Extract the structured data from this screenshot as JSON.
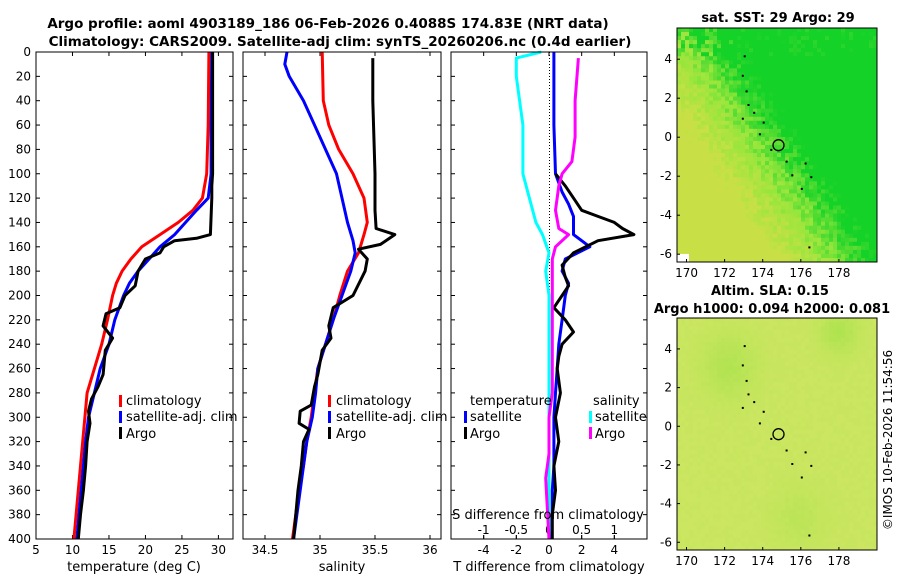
{
  "figure": {
    "title_line1": "Argo profile: aoml 4903189_186 06-Feb-2026 0.4088S 174.83E (NRT data)",
    "title_line2": "Climatology: CARS2009. Satellite-adj clim: synTS_20260206.nc (0.4d earlier)",
    "footer": "©IMOS 10-Feb-2026 11:54:56",
    "colors": {
      "climatology": "#ff0000",
      "satellite": "#0000ff",
      "argo": "#000000",
      "sal_sat": "#00ffff",
      "sal_argo": "#ff00ff"
    }
  },
  "chart_data": [
    {
      "id": "temperature",
      "type": "line",
      "xlabel": "temperature (deg C)",
      "ylabel": "",
      "xlim": [
        5,
        32
      ],
      "ylim": [
        400,
        0
      ],
      "xticks": [
        5,
        10,
        15,
        20,
        25,
        30
      ],
      "yticks": [
        0,
        20,
        40,
        60,
        80,
        100,
        120,
        140,
        160,
        180,
        200,
        220,
        240,
        260,
        280,
        300,
        320,
        340,
        360,
        380,
        400
      ],
      "legend": {
        "position": "bottom-right",
        "labels": [
          "climatology",
          "satellite-adj. clim",
          "Argo"
        ]
      },
      "series": [
        {
          "name": "climatology",
          "color": "#ff0000",
          "points": [
            [
              28.7,
              0
            ],
            [
              28.6,
              60
            ],
            [
              28.4,
              100
            ],
            [
              27.8,
              120
            ],
            [
              26.5,
              130
            ],
            [
              24.5,
              140
            ],
            [
              22,
              150
            ],
            [
              19.5,
              160
            ],
            [
              18,
              170
            ],
            [
              16.8,
              180
            ],
            [
              16,
              190
            ],
            [
              15.5,
              200
            ],
            [
              14.8,
              220
            ],
            [
              14,
              240
            ],
            [
              13,
              260
            ],
            [
              12,
              280
            ],
            [
              11.7,
              300
            ],
            [
              11.4,
              320
            ],
            [
              11.1,
              340
            ],
            [
              10.8,
              360
            ],
            [
              10.5,
              380
            ],
            [
              10.2,
              400
            ]
          ]
        },
        {
          "name": "satellite-adj. clim",
          "color": "#0000ff",
          "points": [
            [
              29.1,
              0
            ],
            [
              29,
              60
            ],
            [
              29,
              100
            ],
            [
              28.6,
              120
            ],
            [
              27,
              130
            ],
            [
              25.5,
              140
            ],
            [
              24,
              150
            ],
            [
              22,
              160
            ],
            [
              20.5,
              170
            ],
            [
              19,
              180
            ],
            [
              17.8,
              190
            ],
            [
              17,
              200
            ],
            [
              15.8,
              220
            ],
            [
              15,
              240
            ],
            [
              13.8,
              260
            ],
            [
              13,
              280
            ],
            [
              12.2,
              300
            ],
            [
              11.8,
              320
            ],
            [
              11.5,
              340
            ],
            [
              11.2,
              360
            ],
            [
              10.9,
              380
            ],
            [
              10.6,
              400
            ]
          ]
        },
        {
          "name": "Argo",
          "color": "#000000",
          "points": [
            [
              29.2,
              0
            ],
            [
              29.2,
              60
            ],
            [
              29.2,
              100
            ],
            [
              29.1,
              110
            ],
            [
              29.1,
              120
            ],
            [
              28.9,
              150
            ],
            [
              27,
              153
            ],
            [
              24,
              155
            ],
            [
              22.5,
              160
            ],
            [
              22,
              165
            ],
            [
              20,
              170
            ],
            [
              19,
              180
            ],
            [
              18.6,
              192
            ],
            [
              17.2,
              200
            ],
            [
              16.5,
              210
            ],
            [
              14.6,
              215
            ],
            [
              14.2,
              225
            ],
            [
              15.5,
              235
            ],
            [
              14.5,
              245
            ],
            [
              14.2,
              265
            ],
            [
              13.5,
              275
            ],
            [
              12.6,
              285
            ],
            [
              12.2,
              295
            ],
            [
              12.4,
              305
            ],
            [
              12,
              320
            ],
            [
              11.8,
              340
            ],
            [
              11.5,
              360
            ],
            [
              11.1,
              380
            ],
            [
              10.8,
              400
            ]
          ]
        }
      ]
    },
    {
      "id": "salinity",
      "type": "line",
      "xlabel": "salinity",
      "ylabel": "",
      "xlim": [
        34.3,
        36.1
      ],
      "ylim": [
        400,
        0
      ],
      "xticks": [
        34.5,
        35,
        35.5,
        36
      ],
      "legend": {
        "position": "bottom-right",
        "labels": [
          "climatology",
          "satellite-adj. clim",
          "Argo"
        ]
      },
      "series": [
        {
          "name": "climatology",
          "color": "#ff0000",
          "points": [
            [
              35.02,
              0
            ],
            [
              35.03,
              40
            ],
            [
              35.08,
              60
            ],
            [
              35.17,
              80
            ],
            [
              35.3,
              100
            ],
            [
              35.4,
              120
            ],
            [
              35.43,
              140
            ],
            [
              35.4,
              150
            ],
            [
              35.35,
              165
            ],
            [
              35.25,
              180
            ],
            [
              35.18,
              200
            ],
            [
              35.12,
              220
            ],
            [
              35.05,
              240
            ],
            [
              34.98,
              260
            ],
            [
              34.95,
              280
            ],
            [
              34.92,
              300
            ],
            [
              34.88,
              320
            ],
            [
              34.85,
              340
            ],
            [
              34.81,
              360
            ],
            [
              34.78,
              380
            ],
            [
              34.75,
              400
            ]
          ]
        },
        {
          "name": "satellite-adj. clim",
          "color": "#0000ff",
          "points": [
            [
              34.7,
              0
            ],
            [
              34.68,
              10
            ],
            [
              34.72,
              20
            ],
            [
              34.85,
              40
            ],
            [
              34.95,
              60
            ],
            [
              35.05,
              80
            ],
            [
              35.15,
              100
            ],
            [
              35.2,
              120
            ],
            [
              35.25,
              140
            ],
            [
              35.3,
              155
            ],
            [
              35.32,
              165
            ],
            [
              35.28,
              180
            ],
            [
              35.2,
              200
            ],
            [
              35.12,
              220
            ],
            [
              35.05,
              240
            ],
            [
              34.98,
              260
            ],
            [
              34.96,
              280
            ],
            [
              34.93,
              300
            ],
            [
              34.88,
              320
            ],
            [
              34.85,
              340
            ],
            [
              34.82,
              360
            ],
            [
              34.79,
              380
            ],
            [
              34.76,
              400
            ]
          ]
        },
        {
          "name": "Argo",
          "color": "#000000",
          "points": [
            [
              35.48,
              5
            ],
            [
              35.48,
              40
            ],
            [
              35.49,
              70
            ],
            [
              35.5,
              100
            ],
            [
              35.5,
              130
            ],
            [
              35.51,
              145
            ],
            [
              35.68,
              150
            ],
            [
              35.55,
              158
            ],
            [
              35.35,
              162
            ],
            [
              35.43,
              170
            ],
            [
              35.41,
              180
            ],
            [
              35.3,
              200
            ],
            [
              35.12,
              210
            ],
            [
              35.08,
              225
            ],
            [
              35.1,
              235
            ],
            [
              35.02,
              245
            ],
            [
              34.98,
              265
            ],
            [
              34.95,
              275
            ],
            [
              34.92,
              290
            ],
            [
              34.82,
              295
            ],
            [
              34.81,
              305
            ],
            [
              34.9,
              310
            ],
            [
              34.85,
              320
            ],
            [
              34.83,
              340
            ],
            [
              34.8,
              360
            ],
            [
              34.78,
              380
            ],
            [
              34.76,
              400
            ]
          ]
        }
      ]
    },
    {
      "id": "difference",
      "type": "line",
      "xlabel": "T difference from climatology",
      "xlabel_top": "S difference from climatology",
      "ylabel": "",
      "xlim": [
        -6,
        6
      ],
      "xlim_top": [
        -1.5,
        1.5
      ],
      "ylim": [
        400,
        0
      ],
      "xticks": [
        -4,
        -2,
        0,
        2,
        4
      ],
      "xticks_top": [
        -1,
        -0.5,
        0,
        0.5,
        1
      ],
      "legend": {
        "position": "bottom",
        "temperature_title": "temperature",
        "salinity_title": "salinity",
        "labels": [
          "satellite",
          "Argo",
          "satellite",
          "Argo"
        ]
      },
      "series": [
        {
          "name": "temperature satellite",
          "color": "#0000ff",
          "points": [
            [
              0.3,
              0
            ],
            [
              0.3,
              60
            ],
            [
              0.4,
              100
            ],
            [
              0.8,
              115
            ],
            [
              1.2,
              125
            ],
            [
              1.5,
              135
            ],
            [
              1.5,
              150
            ],
            [
              2,
              155
            ],
            [
              2.5,
              160
            ],
            [
              1,
              170
            ],
            [
              0.8,
              180
            ],
            [
              1.2,
              190
            ],
            [
              1,
              200
            ],
            [
              0.8,
              220
            ],
            [
              0.6,
              240
            ],
            [
              0.5,
              260
            ],
            [
              0.4,
              280
            ],
            [
              0.3,
              300
            ],
            [
              0.3,
              320
            ],
            [
              0.3,
              340
            ],
            [
              0.2,
              360
            ],
            [
              0.2,
              380
            ],
            [
              0.1,
              400
            ]
          ]
        },
        {
          "name": "temperature Argo",
          "color": "#000000",
          "points": [
            [
              0.4,
              100
            ],
            [
              1,
              110
            ],
            [
              1.5,
              120
            ],
            [
              2,
              130
            ],
            [
              3,
              135
            ],
            [
              4,
              140
            ],
            [
              4.5,
              145
            ],
            [
              5.2,
              150
            ],
            [
              3,
              155
            ],
            [
              1.5,
              165
            ],
            [
              0.8,
              175
            ],
            [
              1,
              185
            ],
            [
              1.2,
              192
            ],
            [
              0.8,
              200
            ],
            [
              0.3,
              210
            ],
            [
              1,
              220
            ],
            [
              1.5,
              230
            ],
            [
              0.8,
              240
            ],
            [
              0.6,
              250
            ],
            [
              0.5,
              260
            ],
            [
              0.7,
              280
            ],
            [
              0.4,
              300
            ],
            [
              0.6,
              320
            ],
            [
              0.3,
              340
            ],
            [
              0.4,
              360
            ],
            [
              0.2,
              380
            ],
            [
              0.2,
              400
            ]
          ]
        },
        {
          "name": "salinity satellite",
          "color": "#00ffff",
          "points": [
            [
              -0.12,
              0
            ],
            [
              -0.5,
              5
            ],
            [
              -0.5,
              20
            ],
            [
              -0.4,
              60
            ],
            [
              -0.4,
              100
            ],
            [
              -0.3,
              120
            ],
            [
              -0.2,
              140
            ],
            [
              -0.1,
              150
            ],
            [
              0,
              165
            ],
            [
              -0.05,
              180
            ],
            [
              0,
              200
            ],
            [
              0,
              240
            ],
            [
              0,
              300
            ],
            [
              0,
              400
            ]
          ]
        },
        {
          "name": "salinity Argo",
          "color": "#ff00ff",
          "points": [
            [
              0.45,
              5
            ],
            [
              0.4,
              40
            ],
            [
              0.4,
              70
            ],
            [
              0.35,
              90
            ],
            [
              0.2,
              100
            ],
            [
              0.15,
              110
            ],
            [
              0.1,
              130
            ],
            [
              0.15,
              145
            ],
            [
              0.3,
              150
            ],
            [
              0.1,
              160
            ],
            [
              0.05,
              170
            ],
            [
              0.05,
              200
            ],
            [
              0.05,
              240
            ],
            [
              0.05,
              280
            ],
            [
              0,
              300
            ],
            [
              0,
              330
            ],
            [
              -0.05,
              350
            ],
            [
              0,
              400
            ]
          ]
        }
      ]
    },
    {
      "id": "sst_map",
      "type": "heatmap",
      "title": "sat. SST: 29 Argo: 29",
      "xlim": [
        169.5,
        180
      ],
      "ylim": [
        -6.4,
        5.6
      ],
      "xticks": [
        170,
        172,
        174,
        176,
        178
      ],
      "yticks": [
        -6,
        -4,
        -2,
        0,
        2,
        4
      ],
      "marker": [
        174.83,
        -0.41
      ]
    },
    {
      "id": "sla_map",
      "type": "heatmap",
      "title": "Altim. SLA: 0.15",
      "subtitle": "Argo h1000: 0.094 h2000: 0.081",
      "xlim": [
        169.5,
        180
      ],
      "ylim": [
        -6.4,
        5.6
      ],
      "xticks": [
        170,
        172,
        174,
        176,
        178
      ],
      "yticks": [
        -6,
        -4,
        -2,
        0,
        2,
        4
      ],
      "marker": [
        174.83,
        -0.41
      ]
    }
  ]
}
